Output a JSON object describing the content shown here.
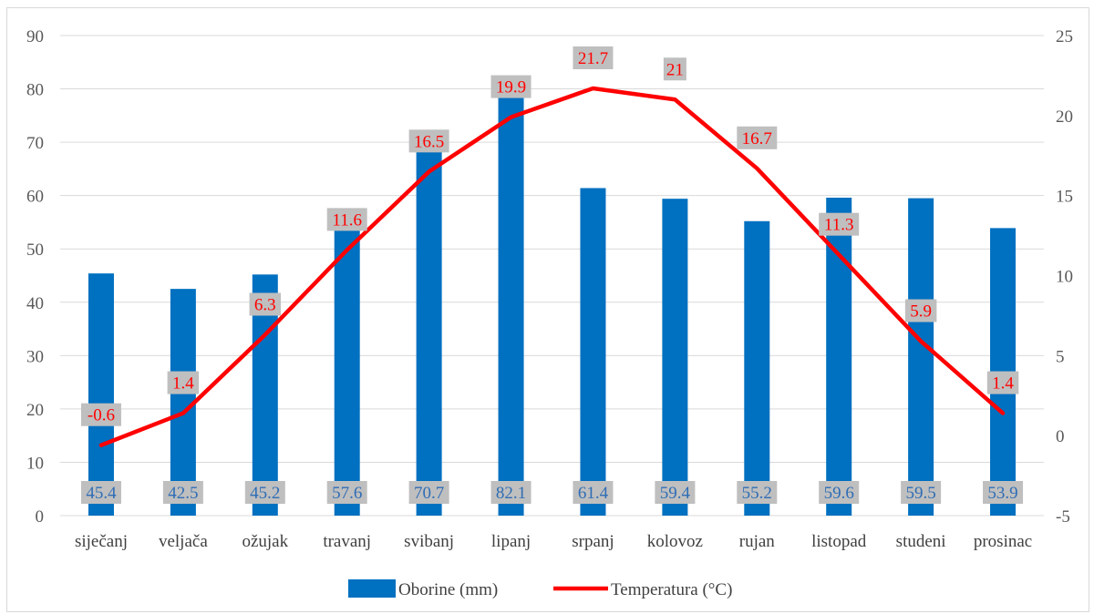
{
  "chart_data": {
    "type": "bar",
    "categories": [
      "siječanj",
      "veljača",
      "ožujak",
      "travanj",
      "svibanj",
      "lipanj",
      "srpanj",
      "kolovoz",
      "rujan",
      "listopad",
      "studeni",
      "prosinac"
    ],
    "series": [
      {
        "name": "Oborine (mm)",
        "type": "bar",
        "axis": "left",
        "color": "#0070c0",
        "values": [
          45.4,
          42.5,
          45.2,
          57.6,
          70.7,
          82.1,
          61.4,
          59.4,
          55.2,
          59.6,
          59.5,
          53.9
        ],
        "labels": [
          "45.4",
          "42.5",
          "45.2",
          "57.6",
          "70.7",
          "82.1",
          "61.4",
          "59.4",
          "55.2",
          "59.6",
          "59.5",
          "53.9"
        ]
      },
      {
        "name": "Temperatura (°C)",
        "type": "line",
        "axis": "right",
        "color": "#ff0000",
        "values": [
          -0.6,
          1.4,
          6.3,
          11.6,
          16.5,
          19.9,
          21.7,
          21,
          16.7,
          11.3,
          5.9,
          1.4
        ],
        "labels": [
          "-0.6",
          "1.4",
          "6.3",
          "11.6",
          "16.5",
          "19.9",
          "21.7",
          "21",
          "16.7",
          "11.3",
          "5.9",
          "1.4"
        ]
      }
    ],
    "y_left": {
      "min": 0,
      "max": 90,
      "ticks": [
        "0",
        "10",
        "20",
        "30",
        "40",
        "50",
        "60",
        "70",
        "80",
        "90"
      ]
    },
    "y_right": {
      "min": -5,
      "max": 25,
      "ticks": [
        "-5",
        "0",
        "5",
        "10",
        "15",
        "20",
        "25"
      ]
    },
    "grid": true,
    "legend_position": "bottom",
    "label_box_color": "#bfbfbf",
    "gridline_color": "#d9d9d9"
  }
}
